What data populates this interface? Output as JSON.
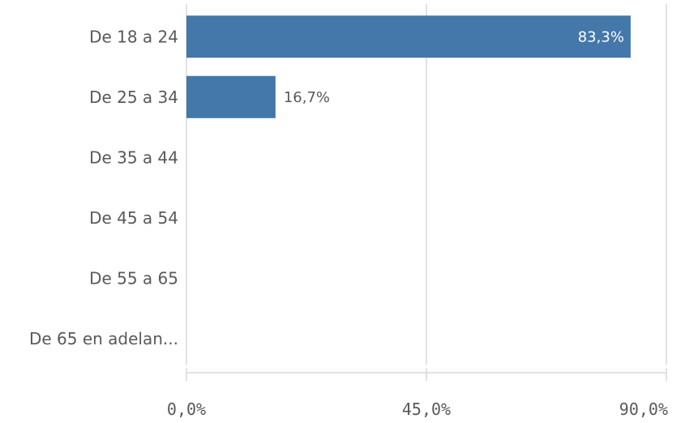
{
  "chart_data": {
    "type": "bar",
    "orientation": "horizontal",
    "categories": [
      "De 18 a 24",
      "De 25 a 34",
      "De 35 a 44",
      "De 45 a 54",
      "De 55 a 65",
      "De 65 en adelan..."
    ],
    "values": [
      83.3,
      16.7,
      0,
      0,
      0,
      0
    ],
    "data_labels": [
      "83,3%",
      "16,7%",
      "",
      "",
      "",
      ""
    ],
    "xlim": [
      0,
      90
    ],
    "ticks": [
      0,
      45,
      90
    ],
    "tick_labels": [
      "0,0%",
      "45,0%",
      "90,0%"
    ],
    "grid": true,
    "bar_color": "#4477aa",
    "title": "",
    "xlabel": "",
    "ylabel": ""
  }
}
